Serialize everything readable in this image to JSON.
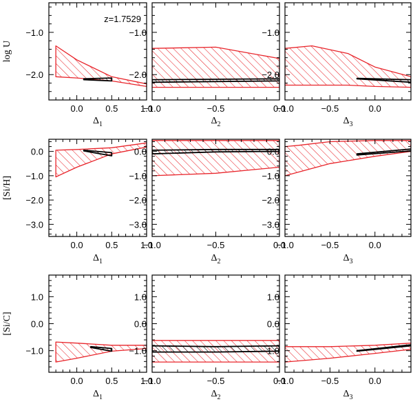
{
  "chart_data": [
    {
      "type": "area",
      "xlabel": "Δ",
      "xsub": "1",
      "ylabel": "log U",
      "annotation": "z=1.7529",
      "xlim": [
        -0.4,
        1.0
      ],
      "ylim": [
        -2.6,
        -0.3
      ],
      "xticks": [
        0.0,
        0.5,
        1.0
      ],
      "xtick_labels": [
        "0.0",
        "0.5",
        "1.0"
      ],
      "yticks": [
        -1.0,
        -2.0
      ],
      "ytick_labels": [
        "−1.0",
        "−2.0"
      ],
      "series": [
        {
          "color": "#e8242a",
          "x": [
            -0.3,
            0.0,
            0.5,
            1.0
          ],
          "y_upper": [
            -1.32,
            -1.65,
            -2.05,
            -2.22
          ],
          "y_lower": [
            -2.05,
            -2.08,
            -2.15,
            -2.28
          ]
        },
        {
          "color": "#000000",
          "x": [
            0.1,
            0.5
          ],
          "y_upper": [
            -2.1,
            -2.08
          ],
          "y_lower": [
            -2.12,
            -2.15
          ]
        }
      ]
    },
    {
      "type": "area",
      "xlabel": "Δ",
      "xsub": "2",
      "ylabel": "",
      "annotation": "",
      "xlim": [
        -1.0,
        0.0
      ],
      "ylim": [
        -2.6,
        -0.3
      ],
      "xticks": [
        -1.0,
        -0.5,
        0.0
      ],
      "xtick_labels": [
        "−1.0",
        "−0.5",
        "0.0"
      ],
      "yticks": [
        -1.0,
        -2.0
      ],
      "ytick_labels": [
        "−1.0",
        "−2.0"
      ],
      "series": [
        {
          "color": "#e8242a",
          "x": [
            -1.0,
            -0.5,
            0.0
          ],
          "y_upper": [
            -1.38,
            -1.35,
            -1.62
          ],
          "y_lower": [
            -2.3,
            -2.3,
            -2.3
          ]
        },
        {
          "color": "#000000",
          "x": [
            -1.0,
            0.0
          ],
          "y_upper": [
            -2.12,
            -2.1
          ],
          "y_lower": [
            -2.18,
            -2.15
          ]
        }
      ]
    },
    {
      "type": "area",
      "xlabel": "Δ",
      "xsub": "3",
      "ylabel": "",
      "annotation": "",
      "xlim": [
        -1.0,
        0.4
      ],
      "ylim": [
        -2.6,
        -0.3
      ],
      "xticks": [
        -1.0,
        -0.5,
        0.0
      ],
      "xtick_labels": [
        "−1.0",
        "−0.5",
        "0.0"
      ],
      "yticks": [
        -1.0,
        -2.0
      ],
      "ytick_labels": [
        "−1.0",
        "−2.0"
      ],
      "series": [
        {
          "color": "#e8242a",
          "x": [
            -1.0,
            -0.7,
            -0.3,
            0.0,
            0.4
          ],
          "y_upper": [
            -1.38,
            -1.32,
            -1.5,
            -1.82,
            -2.05
          ],
          "y_lower": [
            -2.25,
            -2.25,
            -2.25,
            -2.28,
            -2.3
          ]
        },
        {
          "color": "#000000",
          "x": [
            -0.2,
            0.4
          ],
          "y_upper": [
            -2.09,
            -2.12
          ],
          "y_lower": [
            -2.1,
            -2.18
          ]
        }
      ]
    },
    {
      "type": "area",
      "xlabel": "Δ",
      "xsub": "1",
      "ylabel": "[Si/H]",
      "annotation": "",
      "xlim": [
        -0.4,
        1.0
      ],
      "ylim": [
        -3.5,
        0.5
      ],
      "xticks": [
        0.0,
        0.5,
        1.0
      ],
      "xtick_labels": [
        "0.0",
        "0.5",
        "1.0"
      ],
      "yticks": [
        0.0,
        -1.0,
        -2.0,
        -3.0
      ],
      "ytick_labels": [
        "0.0",
        "−1.0",
        "−2.0",
        "−3.0"
      ],
      "series": [
        {
          "color": "#e8242a",
          "x": [
            -0.3,
            0.0,
            0.5,
            1.0
          ],
          "y_upper": [
            0.05,
            0.08,
            0.15,
            0.35
          ],
          "y_lower": [
            -1.05,
            -0.65,
            -0.1,
            0.18
          ]
        },
        {
          "color": "#000000",
          "x": [
            0.1,
            0.5
          ],
          "y_upper": [
            0.05,
            -0.05
          ],
          "y_lower": [
            0.02,
            -0.18
          ]
        }
      ]
    },
    {
      "type": "area",
      "xlabel": "Δ",
      "xsub": "2",
      "ylabel": "",
      "annotation": "",
      "xlim": [
        -1.0,
        0.0
      ],
      "ylim": [
        -3.5,
        0.5
      ],
      "xticks": [
        -1.0,
        -0.5,
        0.0
      ],
      "xtick_labels": [
        "−1.0",
        "−0.5",
        "0.0"
      ],
      "yticks": [
        0.0,
        -1.0,
        -2.0,
        -3.0
      ],
      "ytick_labels": [
        "0.0",
        "−1.0",
        "−2.0",
        "−3.0"
      ],
      "series": [
        {
          "color": "#e8242a",
          "x": [
            -1.0,
            -0.5,
            0.0
          ],
          "y_upper": [
            0.45,
            0.45,
            0.45
          ],
          "y_lower": [
            -1.0,
            -0.9,
            -0.65
          ]
        },
        {
          "color": "#000000",
          "x": [
            -1.0,
            -0.5,
            0.0
          ],
          "y_upper": [
            0.05,
            0.08,
            0.08
          ],
          "y_lower": [
            -0.1,
            -0.02,
            0.0
          ]
        }
      ]
    },
    {
      "type": "area",
      "xlabel": "Δ",
      "xsub": "3",
      "ylabel": "",
      "annotation": "",
      "xlim": [
        -1.0,
        0.4
      ],
      "ylim": [
        -3.5,
        0.5
      ],
      "xticks": [
        -1.0,
        -0.5,
        0.0
      ],
      "xtick_labels": [
        "−1.0",
        "−0.5",
        "0.0"
      ],
      "yticks": [
        0.0,
        -1.0,
        -2.0,
        -3.0
      ],
      "ytick_labels": [
        "0.0",
        "−1.0",
        "−2.0",
        "−3.0"
      ],
      "series": [
        {
          "color": "#e8242a",
          "x": [
            -1.0,
            -0.85,
            -0.5,
            0.0,
            0.4
          ],
          "y_upper": [
            0.2,
            0.25,
            0.4,
            0.45,
            0.45
          ],
          "y_lower": [
            -1.0,
            -0.85,
            -0.5,
            -0.2,
            0.0
          ]
        },
        {
          "color": "#000000",
          "x": [
            -0.2,
            0.4
          ],
          "y_upper": [
            -0.1,
            0.1
          ],
          "y_lower": [
            -0.15,
            0.02
          ]
        }
      ]
    },
    {
      "type": "area",
      "xlabel": "Δ",
      "xsub": "1",
      "ylabel": "[Si/C]",
      "annotation": "",
      "xlim": [
        -0.4,
        1.0
      ],
      "ylim": [
        -1.8,
        1.8
      ],
      "xticks": [
        0.0,
        0.5,
        1.0
      ],
      "xtick_labels": [
        "0.0",
        "0.5",
        "1.0"
      ],
      "yticks": [
        1.0,
        0.0,
        -1.0
      ],
      "ytick_labels": [
        "1.0",
        "0.0",
        "−1.0"
      ],
      "series": [
        {
          "color": "#e8242a",
          "x": [
            -0.3,
            0.0,
            0.5,
            1.0
          ],
          "y_upper": [
            -0.68,
            -0.72,
            -0.8,
            -0.8
          ],
          "y_lower": [
            -1.42,
            -1.28,
            -1.02,
            -0.92
          ]
        },
        {
          "color": "#000000",
          "x": [
            0.2,
            0.5
          ],
          "y_upper": [
            -0.85,
            -0.92
          ],
          "y_lower": [
            -0.88,
            -1.02
          ]
        }
      ]
    },
    {
      "type": "area",
      "xlabel": "Δ",
      "xsub": "2",
      "ylabel": "",
      "annotation": "",
      "xlim": [
        -1.0,
        0.0
      ],
      "ylim": [
        -1.8,
        1.8
      ],
      "xticks": [
        -1.0,
        -0.5,
        0.0
      ],
      "xtick_labels": [
        "−1.0",
        "−0.5",
        "0.0"
      ],
      "yticks": [
        1.0,
        0.0,
        -1.0
      ],
      "ytick_labels": [
        "1.0",
        "0.0",
        "−1.0"
      ],
      "series": [
        {
          "color": "#e8242a",
          "x": [
            -1.0,
            -0.5,
            0.0
          ],
          "y_upper": [
            -0.62,
            -0.62,
            -0.62
          ],
          "y_lower": [
            -1.42,
            -1.42,
            -1.42
          ]
        },
        {
          "color": "#000000",
          "x": [
            -1.0,
            -0.5,
            0.0
          ],
          "y_upper": [
            -0.82,
            -0.85,
            -0.82
          ],
          "y_lower": [
            -1.05,
            -1.05,
            -1.02
          ]
        }
      ]
    },
    {
      "type": "area",
      "xlabel": "Δ",
      "xsub": "3",
      "ylabel": "",
      "annotation": "",
      "xlim": [
        -1.0,
        0.4
      ],
      "ylim": [
        -1.8,
        1.8
      ],
      "xticks": [
        -1.0,
        -0.5,
        0.0
      ],
      "xtick_labels": [
        "−1.0",
        "−0.5",
        "0.0"
      ],
      "yticks": [
        1.0,
        0.0,
        -1.0
      ],
      "ytick_labels": [
        "1.0",
        "0.0",
        "−1.0"
      ],
      "series": [
        {
          "color": "#e8242a",
          "x": [
            -1.0,
            -0.85,
            -0.5,
            0.0,
            0.4
          ],
          "y_upper": [
            -0.85,
            -0.85,
            -0.85,
            -0.8,
            -0.72
          ],
          "y_lower": [
            -1.42,
            -1.38,
            -1.28,
            -1.1,
            -0.95
          ]
        },
        {
          "color": "#000000",
          "x": [
            -0.2,
            0.4
          ],
          "y_upper": [
            -1.0,
            -0.78
          ],
          "y_lower": [
            -1.02,
            -0.82
          ]
        }
      ]
    }
  ]
}
